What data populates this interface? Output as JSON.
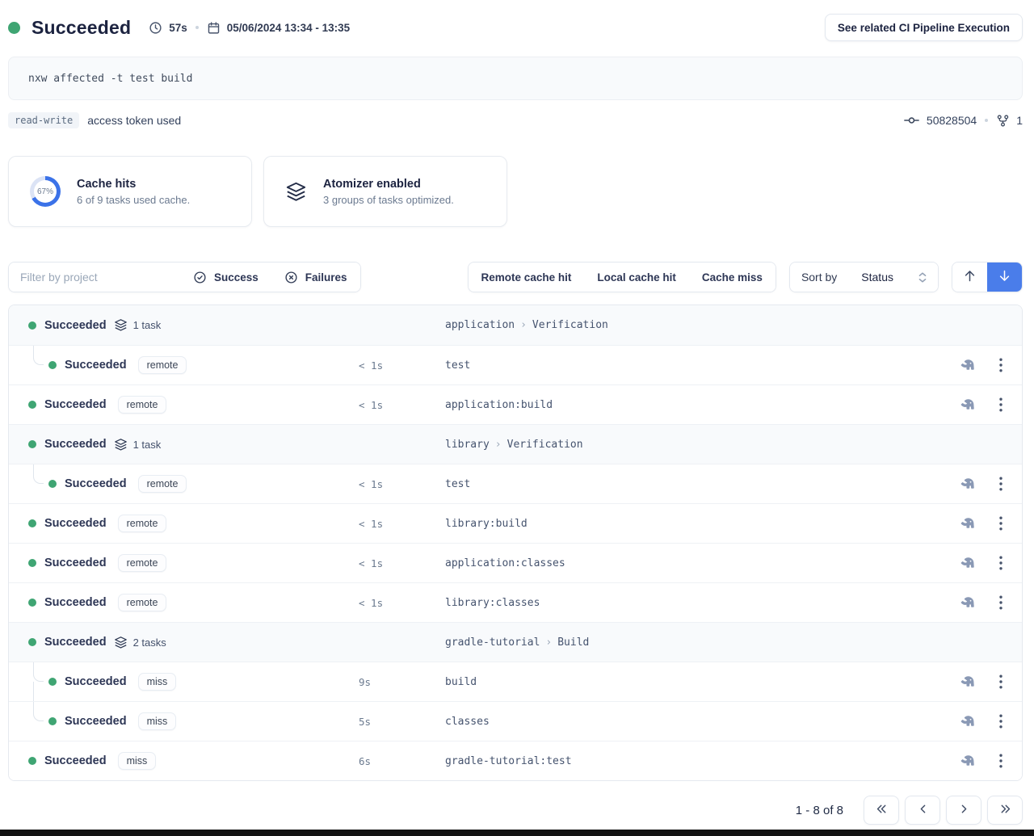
{
  "colors": {
    "green": "#3fa573",
    "blue": "#4a7dea",
    "navy": "#1c2340",
    "donut_track": "#dbe3f5"
  },
  "header": {
    "status": "Succeeded",
    "duration": "57s",
    "date_range": "05/06/2024 13:34 - 13:35",
    "cta": "See related CI Pipeline Execution"
  },
  "command": "nxw affected -t test build",
  "token": {
    "badge": "read-write",
    "text": "access token used"
  },
  "vcs": {
    "commit": "50828504",
    "branch_count": "1"
  },
  "cards": [
    {
      "title": "Cache hits",
      "subtitle": "6 of 9 tasks used cache.",
      "percent_label": "67%",
      "percent_value": 67
    },
    {
      "title": "Atomizer enabled",
      "subtitle": "3 groups of tasks optimized."
    }
  ],
  "filters": {
    "search_placeholder": "Filter by project",
    "success_label": "Success",
    "failures_label": "Failures",
    "cache_buttons": [
      "Remote cache hit",
      "Local cache hit",
      "Cache miss"
    ],
    "sort_label": "Sort by",
    "sort_value": "Status"
  },
  "list": {
    "path_separator": "›"
  },
  "rows": [
    {
      "type": "group",
      "status": "Succeeded",
      "count": "1 task",
      "project": "application",
      "target": "Verification"
    },
    {
      "type": "task",
      "indent": true,
      "tree": "only",
      "status": "Succeeded",
      "badge": "remote",
      "duration": "< 1s",
      "name": "test"
    },
    {
      "type": "task",
      "status": "Succeeded",
      "badge": "remote",
      "duration": "< 1s",
      "name": "application:build"
    },
    {
      "type": "group",
      "status": "Succeeded",
      "count": "1 task",
      "project": "library",
      "target": "Verification"
    },
    {
      "type": "task",
      "indent": true,
      "tree": "only",
      "status": "Succeeded",
      "badge": "remote",
      "duration": "< 1s",
      "name": "test"
    },
    {
      "type": "task",
      "status": "Succeeded",
      "badge": "remote",
      "duration": "< 1s",
      "name": "library:build"
    },
    {
      "type": "task",
      "status": "Succeeded",
      "badge": "remote",
      "duration": "< 1s",
      "name": "application:classes"
    },
    {
      "type": "task",
      "status": "Succeeded",
      "badge": "remote",
      "duration": "< 1s",
      "name": "library:classes"
    },
    {
      "type": "group",
      "status": "Succeeded",
      "count": "2 tasks",
      "project": "gradle-tutorial",
      "target": "Build"
    },
    {
      "type": "task",
      "indent": true,
      "tree": "first",
      "status": "Succeeded",
      "badge": "miss",
      "duration": "9s",
      "name": "build"
    },
    {
      "type": "task",
      "indent": true,
      "tree": "last",
      "status": "Succeeded",
      "badge": "miss",
      "duration": "5s",
      "name": "classes"
    },
    {
      "type": "task",
      "status": "Succeeded",
      "badge": "miss",
      "duration": "6s",
      "name": "gradle-tutorial:test"
    }
  ],
  "pagination": {
    "summary": "1 - 8 of 8"
  },
  "icons": {
    "header": [
      "clock-icon",
      "calendar-icon"
    ],
    "vcs": [
      "commit-icon",
      "branches-icon"
    ],
    "cards": [
      "layers-icon"
    ],
    "filters": [
      "check-circle-icon",
      "x-circle-icon",
      "chevron-updown-icon",
      "arrow-up-icon",
      "arrow-down-icon"
    ],
    "rows": [
      "layers-icon",
      "gradle-icon",
      "kebab-menu-icon"
    ],
    "pagination": [
      "chevrons-left-icon",
      "chevron-left-icon",
      "chevron-right-icon",
      "chevrons-right-icon"
    ]
  }
}
